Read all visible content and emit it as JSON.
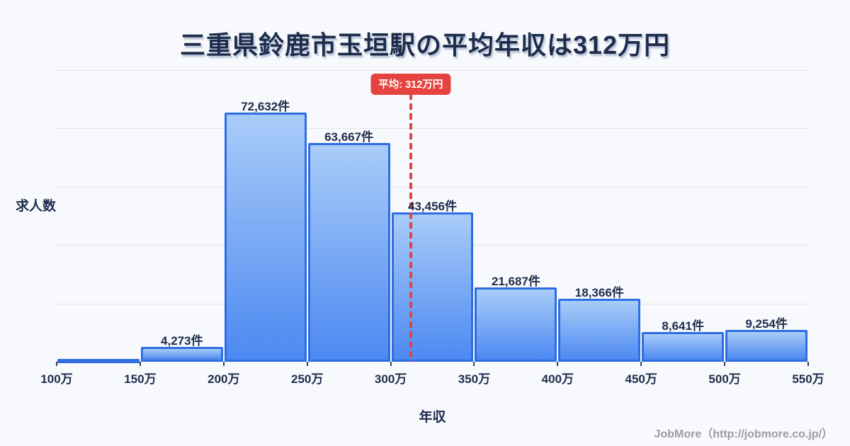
{
  "page": {
    "footer": "JobMore（http://jobmore.co.jp/）"
  },
  "chart_data": {
    "type": "bar",
    "title": "三重県鈴鹿市玉垣駅の平均年収は312万円",
    "xlabel": "年収",
    "ylabel": "求人数",
    "unit_suffix": "件",
    "x_ticks": [
      "100万",
      "150万",
      "200万",
      "250万",
      "300万",
      "350万",
      "400万",
      "450万",
      "500万",
      "550万"
    ],
    "xlim_man_yen": [
      100,
      550
    ],
    "ylim": [
      0,
      85000
    ],
    "grid": true,
    "legend": "none",
    "bins": [
      {
        "range": "100万-150万",
        "value": 800,
        "label": ""
      },
      {
        "range": "150万-200万",
        "value": 4273,
        "label": "4,273件"
      },
      {
        "range": "200万-250万",
        "value": 72632,
        "label": "72,632件"
      },
      {
        "range": "250万-300万",
        "value": 63667,
        "label": "63,667件"
      },
      {
        "range": "300万-350万",
        "value": 43456,
        "label": "43,456件"
      },
      {
        "range": "350万-400万",
        "value": 21687,
        "label": "21,687件"
      },
      {
        "range": "400万-450万",
        "value": 18366,
        "label": "18,366件"
      },
      {
        "range": "450万-500万",
        "value": 8641,
        "label": "8,641件"
      },
      {
        "range": "500万-550万",
        "value": 9254,
        "label": "9,254件"
      }
    ],
    "average_marker": {
      "label": "平均: 312万円",
      "value_man_yen": 312
    },
    "colors": {
      "background": "#f7f9fc",
      "bar_border": "#2e6de2",
      "bar_fill_top": "#a9ccf8",
      "bar_fill_bottom": "#4d89f2",
      "average_red": "#e24444",
      "badge_red": "#e5433f",
      "text_navy": "#1e2c4c",
      "gridline": "#e2e5ee",
      "footer_gray": "#9c9ca1"
    }
  }
}
